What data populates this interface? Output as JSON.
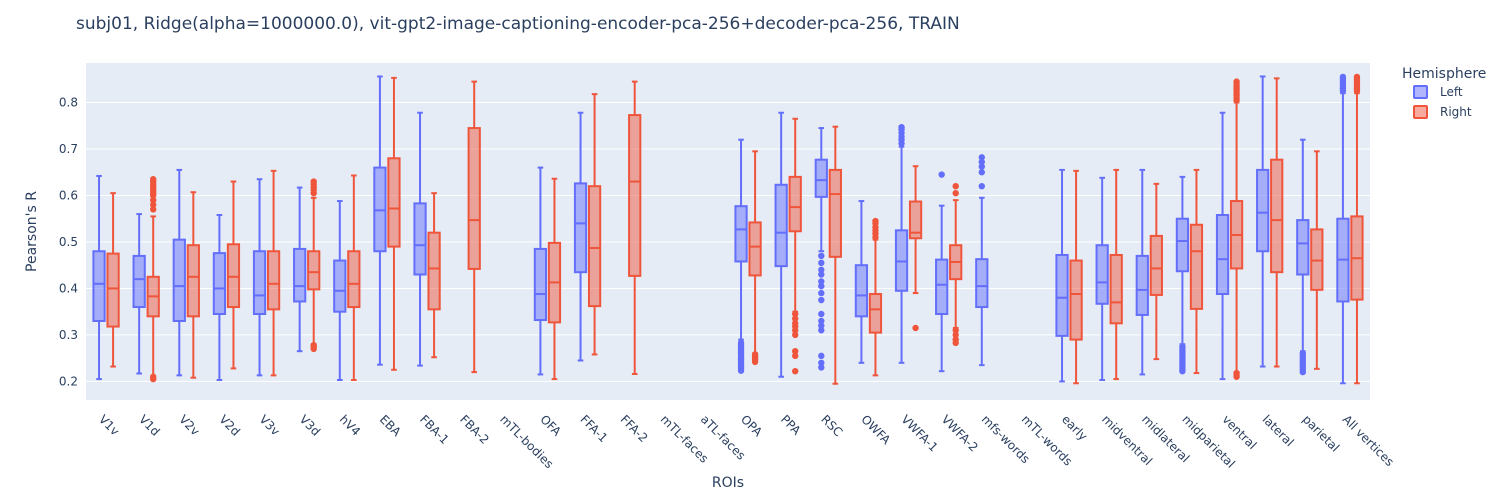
{
  "chart_data": {
    "type": "box",
    "title": "subj01, Ridge(alpha=1000000.0), vit-gpt2-image-captioning-encoder-pca-256+decoder-pca-256, TRAIN",
    "xlabel": "ROIs",
    "ylabel": "Pearson's R",
    "ylim": [
      0.16,
      0.885
    ],
    "yticks": [
      0.2,
      0.3,
      0.4,
      0.5,
      0.6,
      0.7,
      0.8
    ],
    "grid": true,
    "legend": {
      "title": "Hemisphere",
      "position": "top-right"
    },
    "categories": [
      "V1v",
      "V1d",
      "V2v",
      "V2d",
      "V3v",
      "V3d",
      "hV4",
      "EBA",
      "FBA-1",
      "FBA-2",
      "mTL-bodies",
      "OFA",
      "FFA-1",
      "FFA-2",
      "mTL-faces",
      "aTL-faces",
      "OPA",
      "PPA",
      "RSC",
      "OWFA",
      "VWFA-1",
      "VWFA-2",
      "mfs-words",
      "mTL-words",
      "early",
      "midventral",
      "midlateral",
      "midparietal",
      "ventral",
      "lateral",
      "parietal",
      "All vertices"
    ],
    "series": [
      {
        "name": "Left",
        "color": "#636efa",
        "boxes": [
          {
            "min": 0.205,
            "q1": 0.33,
            "median": 0.41,
            "q3": 0.48,
            "max": 0.642
          },
          {
            "min": 0.217,
            "q1": 0.36,
            "median": 0.42,
            "q3": 0.47,
            "max": 0.56
          },
          {
            "min": 0.213,
            "q1": 0.33,
            "median": 0.405,
            "q3": 0.505,
            "max": 0.655
          },
          {
            "min": 0.203,
            "q1": 0.345,
            "median": 0.4,
            "q3": 0.476,
            "max": 0.558
          },
          {
            "min": 0.213,
            "q1": 0.345,
            "median": 0.385,
            "q3": 0.48,
            "max": 0.635
          },
          {
            "min": 0.265,
            "q1": 0.372,
            "median": 0.405,
            "q3": 0.485,
            "max": 0.617
          },
          {
            "min": 0.203,
            "q1": 0.35,
            "median": 0.395,
            "q3": 0.46,
            "max": 0.588
          },
          {
            "min": 0.236,
            "q1": 0.48,
            "median": 0.568,
            "q3": 0.66,
            "max": 0.856
          },
          {
            "min": 0.234,
            "q1": 0.43,
            "median": 0.493,
            "q3": 0.583,
            "max": 0.778
          },
          null,
          null,
          {
            "min": 0.215,
            "q1": 0.332,
            "median": 0.388,
            "q3": 0.485,
            "max": 0.66
          },
          {
            "min": 0.245,
            "q1": 0.435,
            "median": 0.54,
            "q3": 0.626,
            "max": 0.778
          },
          null,
          null,
          null,
          {
            "min": 0.29,
            "q1": 0.458,
            "median": 0.527,
            "q3": 0.577,
            "max": 0.72,
            "outliers": [
              0.283,
              0.279,
              0.275,
              0.271,
              0.267,
              0.263,
              0.259,
              0.255,
              0.251,
              0.247,
              0.243,
              0.239,
              0.235,
              0.231,
              0.227,
              0.223
            ]
          },
          {
            "min": 0.21,
            "q1": 0.448,
            "median": 0.52,
            "q3": 0.623,
            "max": 0.778
          },
          {
            "min": 0.48,
            "q1": 0.597,
            "median": 0.633,
            "q3": 0.677,
            "max": 0.745,
            "outliers": [
              0.47,
              0.455,
              0.44,
              0.43,
              0.415,
              0.405,
              0.39,
              0.375,
              0.345,
              0.33,
              0.32,
              0.31,
              0.255,
              0.24,
              0.23
            ]
          },
          {
            "min": 0.24,
            "q1": 0.34,
            "median": 0.385,
            "q3": 0.45,
            "max": 0.588
          },
          {
            "min": 0.24,
            "q1": 0.395,
            "median": 0.458,
            "q3": 0.525,
            "max": 0.705,
            "outliers": [
              0.712,
              0.72,
              0.727,
              0.735,
              0.742,
              0.747
            ]
          },
          {
            "min": 0.222,
            "q1": 0.345,
            "median": 0.408,
            "q3": 0.462,
            "max": 0.578,
            "outliers": [
              0.645
            ]
          },
          {
            "min": 0.235,
            "q1": 0.36,
            "median": 0.405,
            "q3": 0.463,
            "max": 0.595,
            "outliers": [
              0.62,
              0.65,
              0.662,
              0.672,
              0.682
            ]
          },
          null,
          {
            "min": 0.2,
            "q1": 0.298,
            "median": 0.38,
            "q3": 0.472,
            "max": 0.655
          },
          {
            "min": 0.203,
            "q1": 0.367,
            "median": 0.413,
            "q3": 0.493,
            "max": 0.638
          },
          {
            "min": 0.215,
            "q1": 0.343,
            "median": 0.397,
            "q3": 0.47,
            "max": 0.655
          },
          {
            "min": 0.28,
            "q1": 0.437,
            "median": 0.502,
            "q3": 0.55,
            "max": 0.64,
            "outliers": [
              0.275,
              0.27,
              0.265,
              0.26,
              0.255,
              0.25,
              0.245,
              0.24,
              0.235,
              0.23,
              0.226,
              0.222
            ]
          },
          {
            "min": 0.205,
            "q1": 0.388,
            "median": 0.463,
            "q3": 0.558,
            "max": 0.778
          },
          {
            "min": 0.232,
            "q1": 0.48,
            "median": 0.563,
            "q3": 0.655,
            "max": 0.856
          },
          {
            "min": 0.265,
            "q1": 0.43,
            "median": 0.497,
            "q3": 0.547,
            "max": 0.72,
            "outliers": [
              0.26,
              0.255,
              0.25,
              0.245,
              0.24,
              0.235,
              0.23,
              0.225,
              0.22
            ]
          },
          {
            "min": 0.196,
            "q1": 0.372,
            "median": 0.462,
            "q3": 0.55,
            "max": 0.82,
            "outliers": [
              0.825,
              0.83,
              0.835,
              0.84,
              0.845,
              0.85,
              0.855
            ]
          }
        ]
      },
      {
        "name": "Right",
        "color": "#ef553b",
        "boxes": [
          {
            "min": 0.232,
            "q1": 0.318,
            "median": 0.4,
            "q3": 0.475,
            "max": 0.605
          },
          {
            "min": 0.21,
            "q1": 0.34,
            "median": 0.383,
            "q3": 0.425,
            "max": 0.555,
            "outliers": [
              0.57,
              0.58,
              0.59,
              0.6,
              0.605,
              0.61,
              0.615,
              0.62,
              0.625,
              0.63,
              0.635,
              0.21,
              0.205
            ]
          },
          {
            "min": 0.208,
            "q1": 0.34,
            "median": 0.425,
            "q3": 0.493,
            "max": 0.607
          },
          {
            "min": 0.228,
            "q1": 0.36,
            "median": 0.425,
            "q3": 0.495,
            "max": 0.63
          },
          {
            "min": 0.213,
            "q1": 0.355,
            "median": 0.41,
            "q3": 0.48,
            "max": 0.653
          },
          {
            "min": 0.28,
            "q1": 0.398,
            "median": 0.435,
            "q3": 0.48,
            "max": 0.595,
            "outliers": [
              0.605,
              0.612,
              0.618,
              0.624,
              0.63,
              0.278,
              0.274,
              0.27
            ]
          },
          {
            "min": 0.203,
            "q1": 0.36,
            "median": 0.41,
            "q3": 0.48,
            "max": 0.643
          },
          {
            "min": 0.225,
            "q1": 0.49,
            "median": 0.572,
            "q3": 0.68,
            "max": 0.853
          },
          {
            "min": 0.252,
            "q1": 0.355,
            "median": 0.443,
            "q3": 0.52,
            "max": 0.605
          },
          {
            "min": 0.22,
            "q1": 0.442,
            "median": 0.547,
            "q3": 0.745,
            "max": 0.845
          },
          null,
          {
            "min": 0.205,
            "q1": 0.327,
            "median": 0.413,
            "q3": 0.498,
            "max": 0.636
          },
          {
            "min": 0.258,
            "q1": 0.362,
            "median": 0.487,
            "q3": 0.62,
            "max": 0.818
          },
          {
            "min": 0.216,
            "q1": 0.427,
            "median": 0.63,
            "q3": 0.773,
            "max": 0.845
          },
          null,
          null,
          {
            "min": 0.26,
            "q1": 0.428,
            "median": 0.49,
            "q3": 0.542,
            "max": 0.695,
            "outliers": [
              0.258,
              0.254,
              0.25,
              0.246,
              0.242
            ]
          },
          {
            "min": 0.35,
            "q1": 0.523,
            "median": 0.575,
            "q3": 0.64,
            "max": 0.765,
            "outliers": [
              0.345,
              0.335,
              0.325,
              0.318,
              0.31,
              0.3,
              0.265,
              0.255,
              0.222
            ]
          },
          {
            "min": 0.195,
            "q1": 0.468,
            "median": 0.603,
            "q3": 0.655,
            "max": 0.748
          },
          {
            "min": 0.213,
            "q1": 0.305,
            "median": 0.355,
            "q3": 0.388,
            "max": 0.505,
            "outliers": [
              0.51,
              0.518,
              0.525,
              0.532,
              0.54,
              0.545
            ]
          },
          {
            "min": 0.39,
            "q1": 0.508,
            "median": 0.52,
            "q3": 0.587,
            "max": 0.663,
            "outliers": [
              0.315
            ]
          },
          {
            "min": 0.315,
            "q1": 0.42,
            "median": 0.457,
            "q3": 0.493,
            "max": 0.59,
            "outliers": [
              0.605,
              0.62,
              0.31,
              0.3,
              0.29,
              0.283
            ]
          },
          null,
          null,
          {
            "min": 0.196,
            "q1": 0.29,
            "median": 0.388,
            "q3": 0.46,
            "max": 0.653
          },
          {
            "min": 0.205,
            "q1": 0.325,
            "median": 0.37,
            "q3": 0.472,
            "max": 0.655
          },
          {
            "min": 0.248,
            "q1": 0.386,
            "median": 0.443,
            "q3": 0.513,
            "max": 0.625
          },
          {
            "min": 0.218,
            "q1": 0.356,
            "median": 0.48,
            "q3": 0.537,
            "max": 0.655
          },
          {
            "min": 0.22,
            "q1": 0.443,
            "median": 0.515,
            "q3": 0.588,
            "max": 0.8,
            "outliers": [
              0.805,
              0.81,
              0.815,
              0.82,
              0.825,
              0.83,
              0.835,
              0.84,
              0.845,
              0.218,
              0.214,
              0.21
            ]
          },
          {
            "min": 0.232,
            "q1": 0.435,
            "median": 0.547,
            "q3": 0.677,
            "max": 0.852
          },
          {
            "min": 0.227,
            "q1": 0.397,
            "median": 0.46,
            "q3": 0.527,
            "max": 0.695
          },
          {
            "min": 0.196,
            "q1": 0.376,
            "median": 0.465,
            "q3": 0.555,
            "max": 0.82,
            "outliers": [
              0.825,
              0.83,
              0.835,
              0.84,
              0.845,
              0.85,
              0.855
            ]
          }
        ]
      }
    ]
  }
}
